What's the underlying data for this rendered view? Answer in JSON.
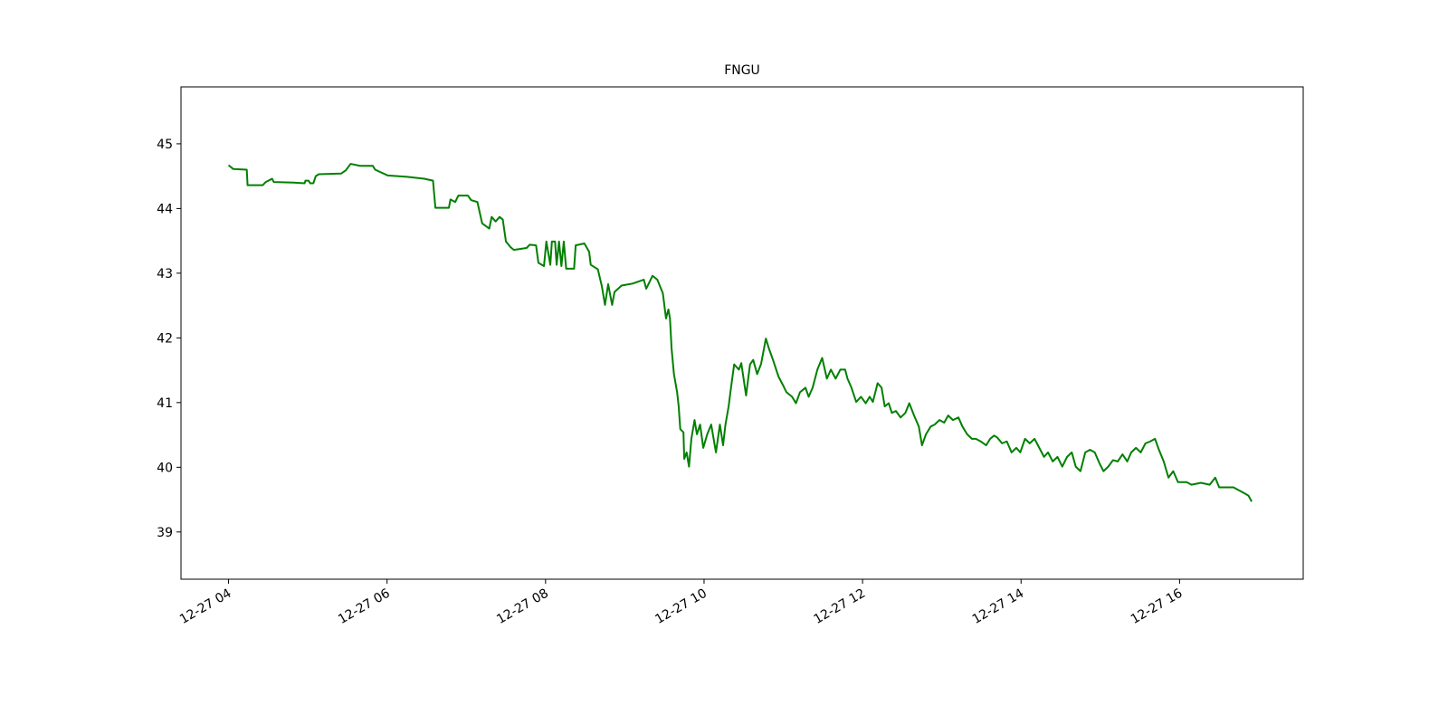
{
  "chart_data": {
    "type": "line",
    "title": "FNGU",
    "x": [
      4.0,
      4.06,
      4.23,
      4.24,
      4.43,
      4.47,
      4.55,
      4.57,
      4.82,
      4.96,
      4.97,
      5.01,
      5.03,
      5.07,
      5.1,
      5.14,
      5.42,
      5.48,
      5.54,
      5.66,
      5.82,
      5.85,
      6.01,
      6.25,
      6.47,
      6.58,
      6.61,
      6.78,
      6.8,
      6.86,
      6.9,
      7.02,
      7.06,
      7.14,
      7.2,
      7.29,
      7.32,
      7.37,
      7.42,
      7.46,
      7.5,
      7.56,
      7.6,
      7.76,
      7.8,
      7.88,
      7.91,
      7.98,
      8.01,
      8.06,
      8.08,
      8.12,
      8.14,
      8.17,
      8.2,
      8.23,
      8.26,
      8.36,
      8.38,
      8.49,
      8.55,
      8.57,
      8.66,
      8.71,
      8.75,
      8.79,
      8.84,
      8.87,
      8.96,
      9.1,
      9.24,
      9.27,
      9.35,
      9.41,
      9.48,
      9.52,
      9.55,
      9.57,
      9.59,
      9.62,
      9.66,
      9.68,
      9.7,
      9.74,
      9.75,
      9.78,
      9.81,
      9.84,
      9.88,
      9.91,
      9.95,
      9.99,
      10.04,
      10.09,
      10.15,
      10.18,
      10.2,
      10.24,
      10.27,
      10.31,
      10.34,
      10.38,
      10.44,
      10.47,
      10.53,
      10.58,
      10.62,
      10.67,
      10.72,
      10.78,
      10.82,
      10.87,
      10.94,
      11.0,
      11.04,
      11.11,
      11.16,
      11.21,
      11.28,
      11.32,
      11.37,
      11.43,
      11.49,
      11.55,
      11.6,
      11.66,
      11.72,
      11.78,
      11.81,
      11.86,
      11.92,
      11.98,
      12.04,
      12.09,
      12.13,
      12.19,
      12.24,
      12.28,
      12.33,
      12.37,
      12.42,
      12.48,
      12.54,
      12.59,
      12.65,
      12.71,
      12.75,
      12.8,
      12.86,
      12.91,
      12.97,
      13.03,
      13.08,
      13.14,
      13.21,
      13.26,
      13.32,
      13.38,
      13.43,
      13.49,
      13.56,
      13.61,
      13.66,
      13.7,
      13.76,
      13.82,
      13.88,
      13.94,
      13.99,
      14.05,
      14.11,
      14.17,
      14.23,
      14.29,
      14.34,
      14.4,
      14.46,
      14.52,
      14.58,
      14.64,
      14.69,
      14.75,
      14.81,
      14.87,
      14.93,
      14.99,
      15.04,
      15.1,
      15.16,
      15.22,
      15.28,
      15.34,
      15.39,
      15.45,
      15.51,
      15.57,
      15.63,
      15.69,
      15.74,
      15.8,
      15.86,
      15.92,
      15.98,
      16.09,
      16.15,
      16.27,
      16.38,
      16.45,
      16.5,
      16.68,
      16.77,
      16.83,
      16.87,
      16.91
    ],
    "series": [
      {
        "name": "FNGU",
        "color": "#008000",
        "values": [
          44.67,
          44.61,
          44.6,
          44.36,
          44.36,
          44.41,
          44.46,
          44.41,
          44.4,
          44.39,
          44.43,
          44.43,
          44.39,
          44.39,
          44.5,
          44.53,
          44.54,
          44.59,
          44.69,
          44.66,
          44.66,
          44.6,
          44.51,
          44.49,
          44.46,
          44.43,
          44.01,
          44.01,
          44.14,
          44.1,
          44.2,
          44.2,
          44.13,
          44.1,
          43.77,
          43.69,
          43.87,
          43.8,
          43.87,
          43.83,
          43.49,
          43.4,
          43.36,
          43.39,
          43.44,
          43.43,
          43.16,
          43.11,
          43.49,
          43.13,
          43.49,
          43.49,
          43.13,
          43.49,
          43.11,
          43.49,
          43.07,
          43.07,
          43.43,
          43.46,
          43.33,
          43.13,
          43.06,
          42.8,
          42.51,
          42.83,
          42.51,
          42.71,
          42.81,
          42.84,
          42.9,
          42.76,
          42.96,
          42.9,
          42.69,
          42.3,
          42.44,
          42.3,
          41.84,
          41.44,
          41.16,
          40.94,
          40.59,
          40.54,
          40.13,
          40.23,
          40.01,
          40.44,
          40.73,
          40.51,
          40.66,
          40.3,
          40.51,
          40.66,
          40.23,
          40.49,
          40.66,
          40.34,
          40.66,
          40.94,
          41.23,
          41.59,
          41.51,
          41.61,
          41.11,
          41.59,
          41.66,
          41.44,
          41.6,
          41.99,
          41.83,
          41.66,
          41.4,
          41.26,
          41.16,
          41.09,
          40.99,
          41.16,
          41.23,
          41.09,
          41.23,
          41.51,
          41.69,
          41.37,
          41.51,
          41.37,
          41.51,
          41.51,
          41.37,
          41.23,
          41.01,
          41.09,
          40.99,
          41.09,
          41.01,
          41.3,
          41.23,
          40.94,
          40.99,
          40.84,
          40.87,
          40.77,
          40.84,
          40.99,
          40.8,
          40.63,
          40.34,
          40.51,
          40.63,
          40.66,
          40.73,
          40.69,
          40.8,
          40.73,
          40.77,
          40.63,
          40.51,
          40.44,
          40.44,
          40.4,
          40.34,
          40.44,
          40.49,
          40.46,
          40.37,
          40.4,
          40.23,
          40.3,
          40.23,
          40.44,
          40.37,
          40.44,
          40.3,
          40.16,
          40.23,
          40.09,
          40.16,
          40.01,
          40.16,
          40.23,
          40.01,
          39.94,
          40.23,
          40.27,
          40.23,
          40.06,
          39.94,
          40.01,
          40.11,
          40.09,
          40.2,
          40.09,
          40.23,
          40.3,
          40.23,
          40.37,
          40.4,
          40.44,
          40.27,
          40.09,
          39.84,
          39.94,
          39.77,
          39.77,
          39.73,
          39.76,
          39.73,
          39.84,
          39.69,
          39.69,
          39.63,
          39.59,
          39.56,
          39.47
        ]
      }
    ],
    "xlim": [
      3.4,
      17.56
    ],
    "xticks": [
      {
        "value": 4,
        "label": "12-27 04"
      },
      {
        "value": 6,
        "label": "12-27 06"
      },
      {
        "value": 8,
        "label": "12-27 08"
      },
      {
        "value": 10,
        "label": "12-27 10"
      },
      {
        "value": 12,
        "label": "12-27 12"
      },
      {
        "value": 14,
        "label": "12-27 14"
      },
      {
        "value": 16,
        "label": "12-27 16"
      }
    ],
    "ylim": [
      38.27,
      45.88
    ],
    "yticks": [
      39,
      40,
      41,
      42,
      43,
      44,
      45
    ],
    "grid": false
  }
}
